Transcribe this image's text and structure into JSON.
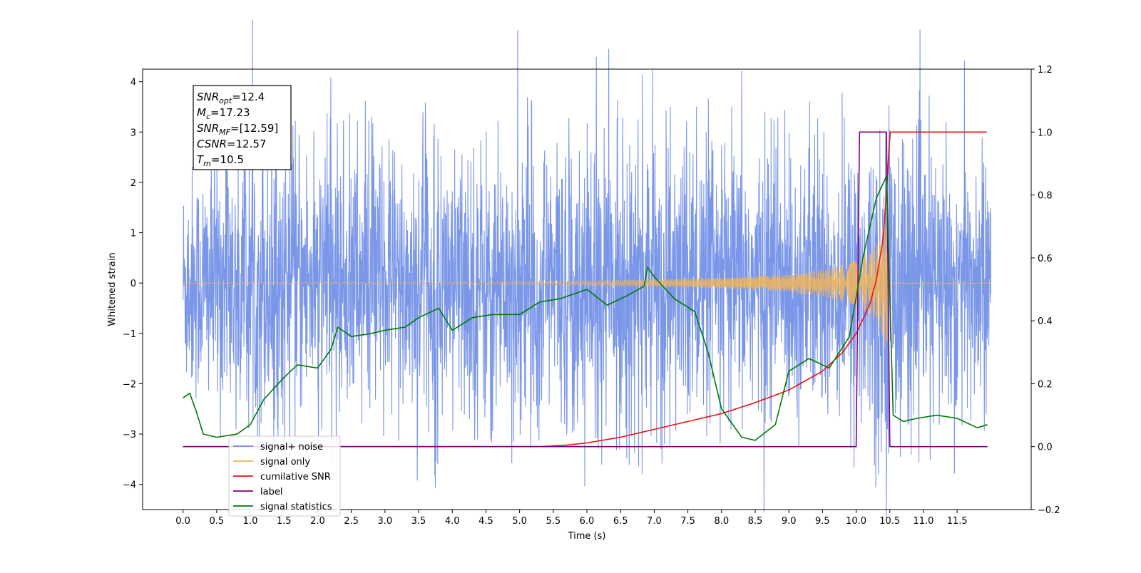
{
  "chart_data": {
    "type": "line",
    "xlabel": "Time (s)",
    "ylabel": "Whitened strain",
    "ylabel_right": "",
    "xlim": [
      -0.6,
      12.6
    ],
    "ylim": [
      -4.5,
      4.25
    ],
    "ylim_right": [
      -0.2,
      1.2
    ],
    "x_ticks": [
      0.0,
      0.5,
      1.0,
      1.5,
      2.0,
      2.5,
      3.0,
      3.5,
      4.0,
      4.5,
      5.0,
      5.5,
      6.0,
      6.5,
      7.0,
      7.5,
      8.0,
      8.5,
      9.0,
      9.5,
      10.0,
      10.5,
      11.0,
      11.5
    ],
    "x_tick_labels": [
      "0.0",
      "0.5",
      "1.0",
      "1.5",
      "2.0",
      "2.5",
      "3.0",
      "3.5",
      "4.0",
      "4.5",
      "5.0",
      "5.5",
      "6.0",
      "6.5",
      "7.0",
      "7.5",
      "8.0",
      "8.5",
      "9.0",
      "9.5",
      "10.0",
      "10.5",
      "11.0",
      "11.5"
    ],
    "y_ticks": [
      -4,
      -3,
      -2,
      -1,
      0,
      1,
      2,
      3,
      4
    ],
    "y_tick_labels": [
      "−4",
      "−3",
      "−2",
      "−1",
      "0",
      "1",
      "2",
      "3",
      "4"
    ],
    "y_ticks_right": [
      -0.2,
      0.0,
      0.2,
      0.4,
      0.6,
      0.8,
      1.0,
      1.2
    ],
    "y_tick_labels_right": [
      "−0.2",
      "0.0",
      "0.2",
      "0.4",
      "0.6",
      "0.8",
      "1.0",
      "1.2"
    ],
    "grid": false,
    "legend_position": "lower-left",
    "noise_envelope": {
      "x": [
        0.0,
        1.0,
        2.0,
        3.0,
        4.0,
        5.0,
        6.0,
        7.0,
        8.0,
        9.0,
        10.0,
        10.4,
        11.0,
        12.0
      ],
      "upper": [
        2.0,
        2.5,
        2.4,
        2.5,
        2.5,
        2.6,
        2.5,
        2.6,
        2.4,
        2.5,
        2.5,
        3.2,
        2.3,
        2.5
      ],
      "lower": [
        -2.0,
        -2.5,
        -2.4,
        -2.5,
        -2.5,
        -2.6,
        -2.5,
        -2.6,
        -2.5,
        -2.5,
        -2.6,
        -2.8,
        -2.4,
        -2.5
      ]
    },
    "series": [
      {
        "name": "signal+ noise",
        "axis": "left",
        "color": "#6f8de6",
        "x": [],
        "y": []
      },
      {
        "name": "signal only",
        "axis": "left",
        "color": "#f5b552",
        "x": [
          0.0,
          6.0,
          7.0,
          8.0,
          9.0,
          9.5,
          10.0,
          10.2,
          10.35,
          10.45,
          10.5,
          12.0
        ],
        "y": [
          0.0,
          0.04,
          0.07,
          0.1,
          0.17,
          0.27,
          0.45,
          0.62,
          0.88,
          1.45,
          0.0,
          0.0
        ]
      },
      {
        "name": "cumilative SNR",
        "axis": "right",
        "color": "#ee1111",
        "x": [
          0.0,
          5.3,
          5.7,
          6.0,
          6.5,
          7.0,
          7.5,
          8.0,
          8.5,
          9.0,
          9.5,
          9.8,
          10.0,
          10.2,
          10.3,
          10.4,
          10.45,
          10.5,
          12.0
        ],
        "y": [
          0.0,
          0.0,
          0.005,
          0.012,
          0.03,
          0.055,
          0.08,
          0.105,
          0.14,
          0.18,
          0.24,
          0.3,
          0.36,
          0.45,
          0.53,
          0.66,
          0.8,
          1.0,
          1.0
        ]
      },
      {
        "name": "label",
        "axis": "right",
        "color": "#800080",
        "x": [
          0.0,
          10.0,
          10.05,
          10.45,
          10.5,
          11.95
        ],
        "y": [
          0.0,
          0.0,
          1.0,
          1.0,
          0.0,
          0.0
        ]
      },
      {
        "name": "signal statistics",
        "axis": "right",
        "color": "#007a00",
        "x": [
          0.0,
          0.1,
          0.2,
          0.3,
          0.5,
          0.8,
          1.0,
          1.2,
          1.5,
          1.7,
          2.0,
          2.2,
          2.3,
          2.5,
          2.8,
          3.0,
          3.3,
          3.5,
          3.8,
          4.0,
          4.3,
          4.6,
          5.0,
          5.3,
          5.6,
          6.0,
          6.3,
          6.6,
          6.85,
          6.9,
          7.0,
          7.3,
          7.6,
          7.8,
          8.0,
          8.3,
          8.5,
          8.8,
          9.0,
          9.3,
          9.6,
          9.9,
          10.1,
          10.3,
          10.45,
          10.55,
          10.7,
          10.9,
          11.2,
          11.5,
          11.8,
          11.95
        ],
        "y": [
          0.155,
          0.17,
          0.11,
          0.04,
          0.03,
          0.04,
          0.07,
          0.15,
          0.22,
          0.26,
          0.25,
          0.31,
          0.38,
          0.35,
          0.36,
          0.37,
          0.38,
          0.41,
          0.44,
          0.37,
          0.41,
          0.42,
          0.42,
          0.46,
          0.47,
          0.5,
          0.45,
          0.48,
          0.51,
          0.57,
          0.54,
          0.47,
          0.43,
          0.3,
          0.12,
          0.03,
          0.02,
          0.07,
          0.24,
          0.28,
          0.25,
          0.35,
          0.6,
          0.79,
          0.86,
          0.1,
          0.08,
          0.09,
          0.1,
          0.09,
          0.06,
          0.07
        ]
      }
    ],
    "annotation": {
      "lines": [
        {
          "label": "SNR",
          "sub": "opt",
          "value": "=12.4"
        },
        {
          "label": "M",
          "sub": "c",
          "value": "=17.23"
        },
        {
          "label": "SNR",
          "sub": "MF",
          "value": "=[12.59]"
        },
        {
          "label": "CSNR",
          "sub": "",
          "value": "=12.57"
        },
        {
          "label": "T",
          "sub": "m",
          "value": "=10.5"
        }
      ]
    },
    "legend": [
      {
        "label": "signal+ noise",
        "color": "#6f8de6"
      },
      {
        "label": "signal only",
        "color": "#f5b552"
      },
      {
        "label": "cumilative SNR",
        "color": "#ee1111"
      },
      {
        "label": "label",
        "color": "#800080"
      },
      {
        "label": "signal statistics",
        "color": "#007a00"
      }
    ]
  }
}
